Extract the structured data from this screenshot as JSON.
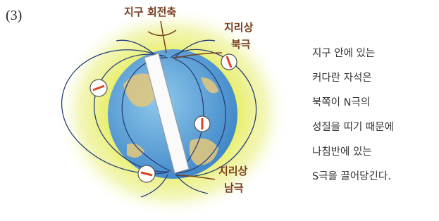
{
  "label": "(3)",
  "illustration": {
    "axis_label": "지구 회전축",
    "north_label": [
      "지리상",
      "북극"
    ],
    "south_label": [
      "지리상",
      "남극"
    ]
  },
  "description": [
    "지구 안에 있는",
    "커다란 자석은",
    "북쪽이 N극의",
    "성질을 띠기 때문에",
    "나침반에 있는",
    "S극을 끌어당긴다."
  ]
}
